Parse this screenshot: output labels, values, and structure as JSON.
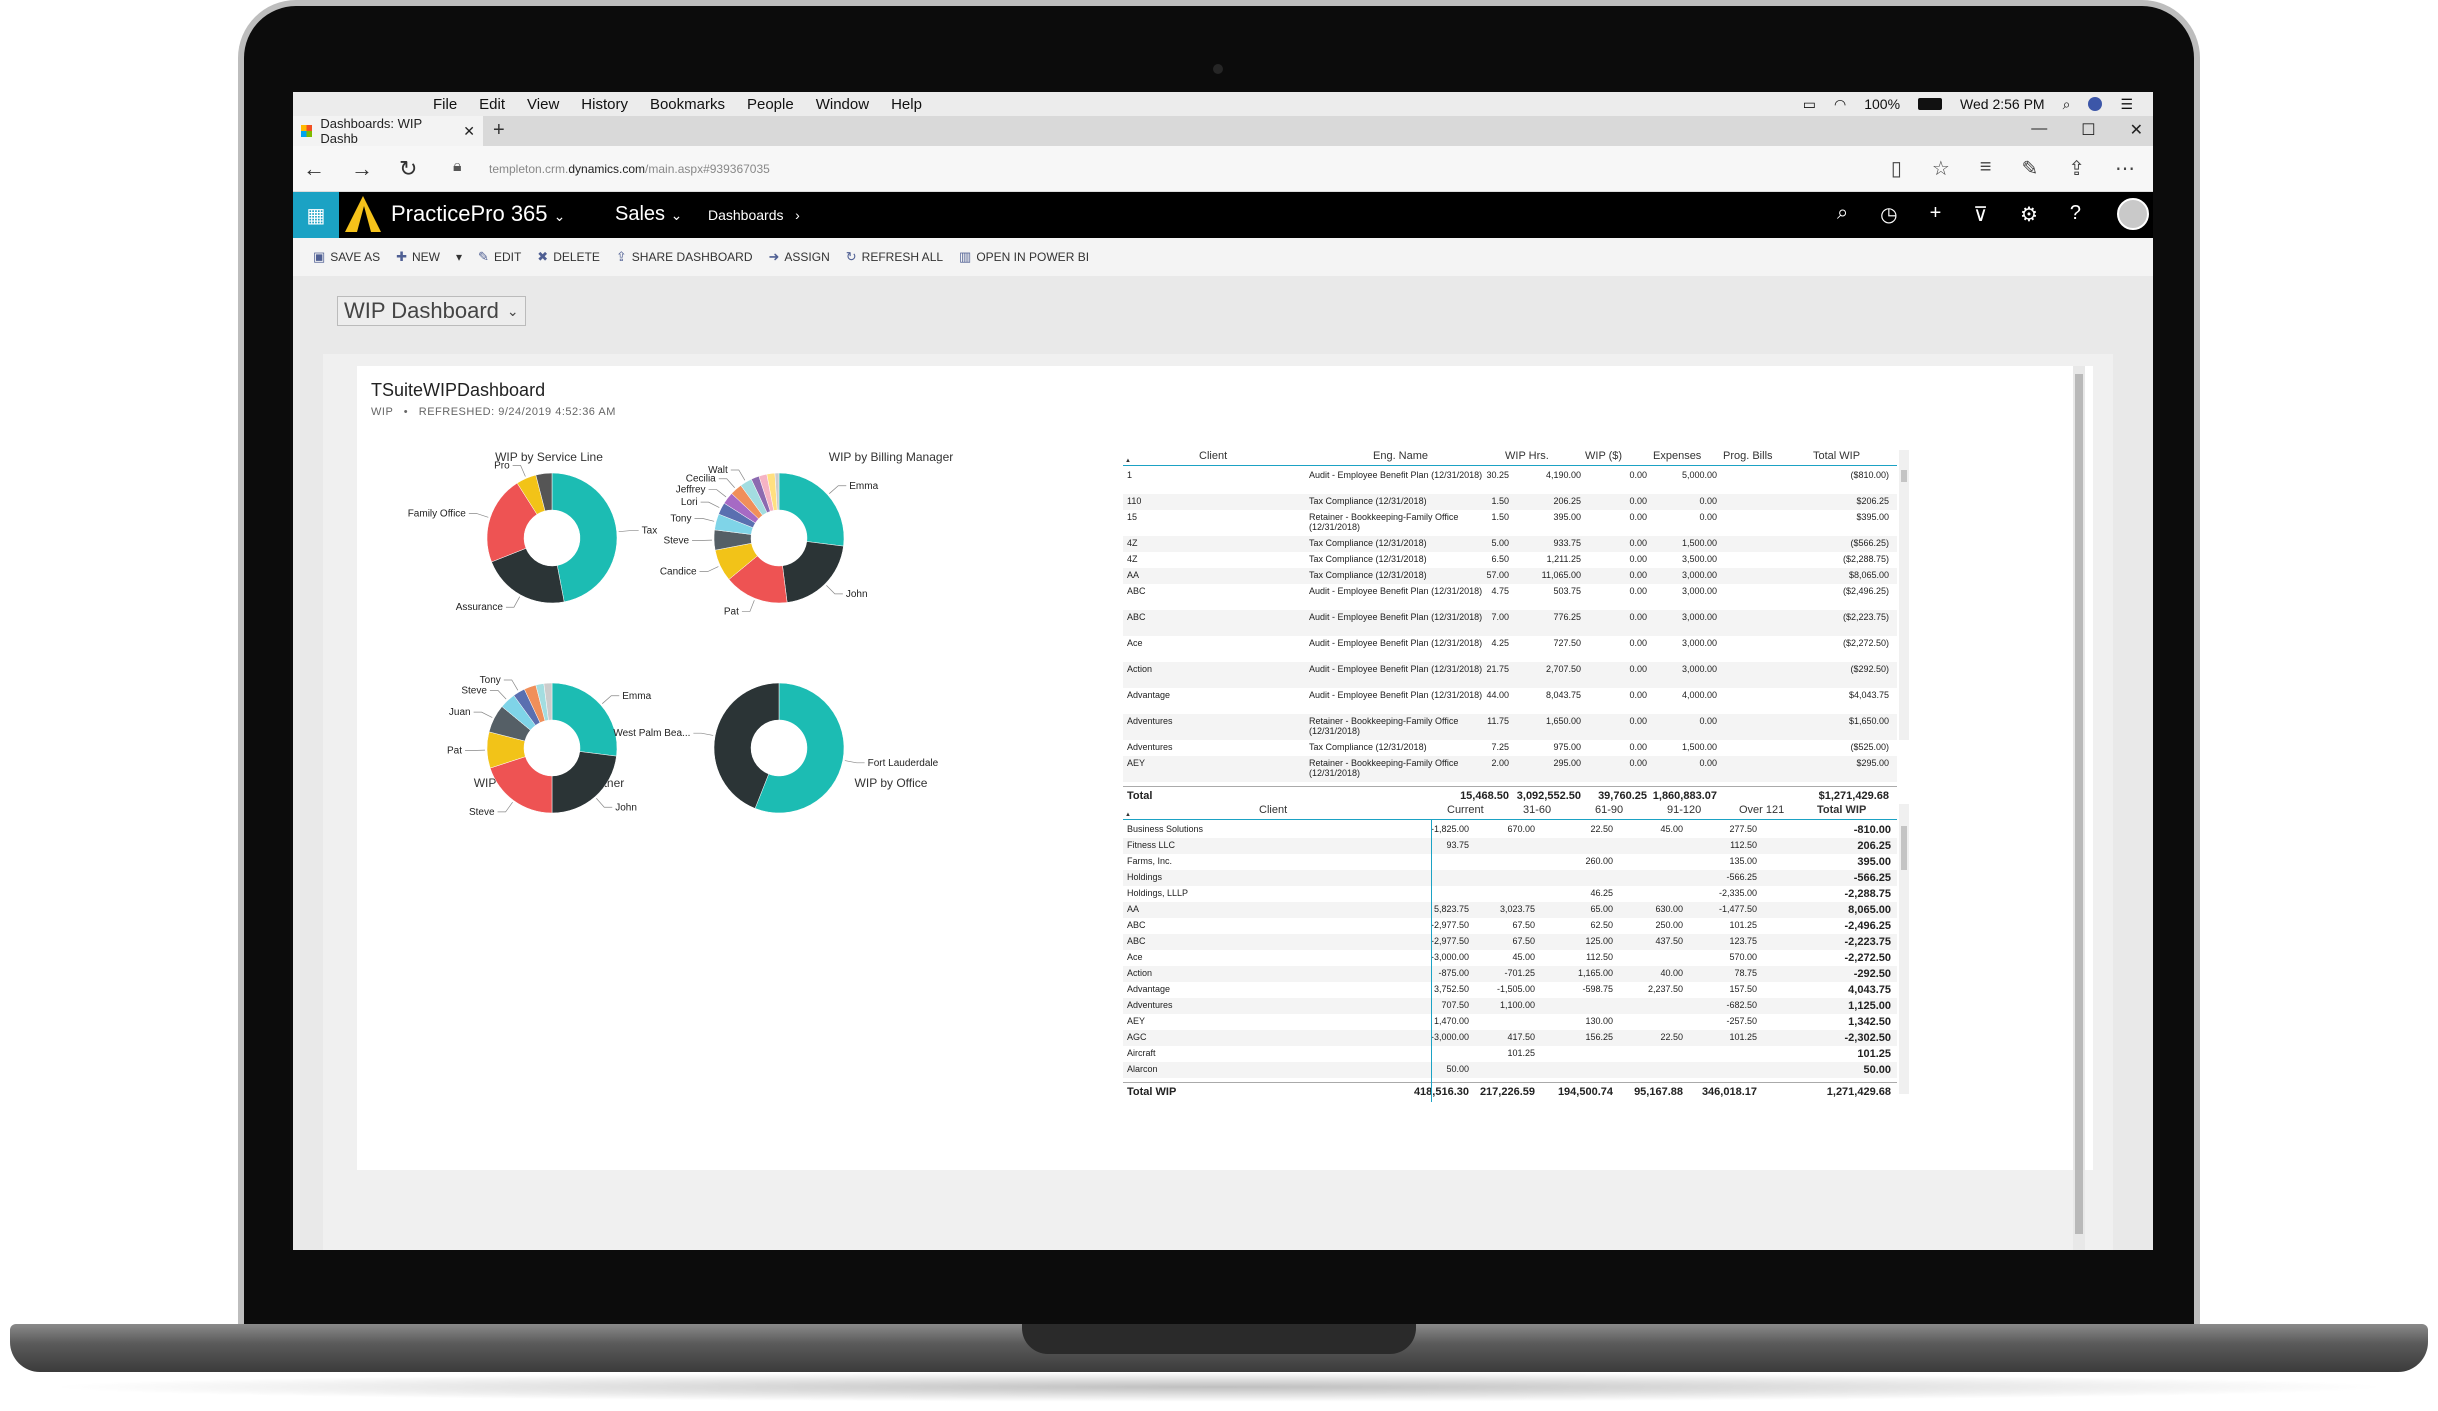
{
  "menubar": {
    "menus": [
      "File",
      "Edit",
      "View",
      "History",
      "Bookmarks",
      "People",
      "Window",
      "Help"
    ],
    "battery": "100%",
    "clock": "Wed 2:56 PM"
  },
  "browser": {
    "tab_title": "Dashboards: WIP Dashb",
    "url_prefix": "templeton.crm.",
    "url_domain": "dynamics.com",
    "url_path": "/main.aspx#939367035"
  },
  "app": {
    "brand": "PracticePro 365",
    "module": "Sales",
    "breadcrumb": "Dashboards"
  },
  "commands": [
    {
      "icon": "save-icon",
      "label": "SAVE AS"
    },
    {
      "icon": "new-icon",
      "label": "NEW"
    },
    {
      "icon": "edit-icon",
      "label": "EDIT"
    },
    {
      "icon": "delete-icon",
      "label": "DELETE"
    },
    {
      "icon": "share-icon",
      "label": "SHARE DASHBOARD"
    },
    {
      "icon": "assign-icon",
      "label": "ASSIGN"
    },
    {
      "icon": "refresh-icon",
      "label": "REFRESH ALL"
    },
    {
      "icon": "powerbi-icon",
      "label": "OPEN IN POWER BI"
    }
  ],
  "dashboard_selector": "WIP Dashboard",
  "report": {
    "title": "TSuiteWIPDashboard",
    "subtitle_left": "WIP",
    "subtitle_right": "REFRESHED: 9/24/2019 4:52:36 AM"
  },
  "colors": {
    "teal": "#1cbcb3",
    "dark": "#2b3436",
    "red": "#ee5353",
    "yellow": "#f2c318",
    "accent": "#1ba2c4"
  },
  "chart_data": [
    {
      "type": "pie",
      "title": "WIP by Service Line",
      "labels": [
        "Tax",
        "Assurance",
        "Family Office",
        "Pro",
        ""
      ],
      "values": [
        47,
        22,
        22,
        5,
        4
      ],
      "colors": [
        "#1cbcb3",
        "#2b3436",
        "#ee5353",
        "#f2c318",
        "#555555"
      ]
    },
    {
      "type": "pie",
      "title": "WIP by Billing Manager",
      "labels": [
        "Emma",
        "John",
        "Pat",
        "Candice",
        "Steve",
        "Tony",
        "Lori",
        "Jeffrey",
        "Cecilia",
        "Walt",
        "",
        "",
        "",
        ""
      ],
      "values": [
        27,
        21,
        16,
        8,
        5,
        4,
        3,
        3,
        3,
        3,
        2,
        2,
        2,
        1
      ],
      "colors": [
        "#1cbcb3",
        "#2b3436",
        "#ee5353",
        "#f2c318",
        "#555f66",
        "#7fd4e8",
        "#5a6fb0",
        "#a66ac4",
        "#f08f5a",
        "#a3dde0",
        "#8c6ab0",
        "#f5b3c4",
        "#ffe080",
        "#cccccc"
      ]
    },
    {
      "type": "pie",
      "title": "WIP by Responsible Partner",
      "labels": [
        "Emma",
        "John",
        "Steve",
        "Pat",
        "Juan",
        "Steve",
        "Tony",
        "",
        "",
        ""
      ],
      "values": [
        27,
        23,
        20,
        9,
        7,
        4,
        3,
        3,
        2,
        2
      ],
      "colors": [
        "#1cbcb3",
        "#2b3436",
        "#ee5353",
        "#f2c318",
        "#555f66",
        "#7fd4e8",
        "#5a6fb0",
        "#f08f5a",
        "#a3dde0",
        "#cccccc"
      ]
    },
    {
      "type": "pie",
      "title": "WIP by Office",
      "labels": [
        "Fort Lauderdale",
        "West Palm Bea..."
      ],
      "values": [
        56,
        44
      ],
      "colors": [
        "#1cbcb3",
        "#2b3436"
      ]
    }
  ],
  "table1": {
    "headers": [
      "Client",
      "Eng. Name",
      "WIP Hrs.",
      "WIP ($)",
      "Expenses",
      "Prog. Bills",
      "Total WIP"
    ],
    "rows": [
      [
        "1",
        "Audit - Employee Benefit Plan (12/31/2018)",
        "30.25",
        "4,190.00",
        "0.00",
        "5,000.00",
        "($810.00)"
      ],
      [
        "110",
        "Tax Compliance (12/31/2018)",
        "1.50",
        "206.25",
        "0.00",
        "0.00",
        "$206.25"
      ],
      [
        "15",
        "Retainer - Bookkeeping-Family Office (12/31/2018)",
        "1.50",
        "395.00",
        "0.00",
        "0.00",
        "$395.00"
      ],
      [
        "4Z",
        "Tax Compliance (12/31/2018)",
        "5.00",
        "933.75",
        "0.00",
        "1,500.00",
        "($566.25)"
      ],
      [
        "4Z",
        "Tax Compliance (12/31/2018)",
        "6.50",
        "1,211.25",
        "0.00",
        "3,500.00",
        "($2,288.75)"
      ],
      [
        "AA",
        "Tax Compliance (12/31/2018)",
        "57.00",
        "11,065.00",
        "0.00",
        "3,000.00",
        "$8,065.00"
      ],
      [
        "ABC",
        "Audit - Employee Benefit Plan (12/31/2018)",
        "4.75",
        "503.75",
        "0.00",
        "3,000.00",
        "($2,496.25)"
      ],
      [
        "ABC",
        "Audit - Employee Benefit Plan (12/31/2018)",
        "7.00",
        "776.25",
        "0.00",
        "3,000.00",
        "($2,223.75)"
      ],
      [
        "Ace",
        "Audit - Employee Benefit Plan (12/31/2018)",
        "4.25",
        "727.50",
        "0.00",
        "3,000.00",
        "($2,272.50)"
      ],
      [
        "Action",
        "Audit - Employee Benefit Plan (12/31/2018)",
        "21.75",
        "2,707.50",
        "0.00",
        "3,000.00",
        "($292.50)"
      ],
      [
        "Advantage",
        "Audit - Employee Benefit Plan (12/31/2018)",
        "44.00",
        "8,043.75",
        "0.00",
        "4,000.00",
        "$4,043.75"
      ],
      [
        "Adventures",
        "Retainer - Bookkeeping-Family Office (12/31/2018)",
        "11.75",
        "1,650.00",
        "0.00",
        "0.00",
        "$1,650.00"
      ],
      [
        "Adventures",
        "Tax Compliance (12/31/2018)",
        "7.25",
        "975.00",
        "0.00",
        "1,500.00",
        "($525.00)"
      ],
      [
        "AEY",
        "Retainer - Bookkeeping-Family Office (12/31/2018)",
        "2.00",
        "295.00",
        "0.00",
        "0.00",
        "$295.00"
      ]
    ],
    "total": [
      "Total",
      "",
      "15,468.50",
      "3,092,552.50",
      "39,760.25",
      "1,860,883.07",
      "$1,271,429.68"
    ]
  },
  "table2": {
    "headers": [
      "Client",
      "Current",
      "31-60",
      "61-90",
      "91-120",
      "Over 121",
      "Total WIP"
    ],
    "rows": [
      [
        "Business Solutions",
        "-1,825.00",
        "670.00",
        "22.50",
        "45.00",
        "277.50",
        "-810.00"
      ],
      [
        "Fitness LLC",
        "93.75",
        "",
        "",
        "",
        "112.50",
        "206.25"
      ],
      [
        "Farms, Inc.",
        "",
        "",
        "260.00",
        "",
        "135.00",
        "395.00"
      ],
      [
        "Holdings",
        "",
        "",
        "",
        "",
        "-566.25",
        "-566.25"
      ],
      [
        "Holdings, LLLP",
        "",
        "",
        "46.25",
        "",
        "-2,335.00",
        "-2,288.75"
      ],
      [
        "AA",
        "5,823.75",
        "3,023.75",
        "65.00",
        "630.00",
        "-1,477.50",
        "8,065.00"
      ],
      [
        "ABC",
        "-2,977.50",
        "67.50",
        "62.50",
        "250.00",
        "101.25",
        "-2,496.25"
      ],
      [
        "ABC",
        "-2,977.50",
        "67.50",
        "125.00",
        "437.50",
        "123.75",
        "-2,223.75"
      ],
      [
        "Ace",
        "-3,000.00",
        "45.00",
        "112.50",
        "",
        "570.00",
        "-2,272.50"
      ],
      [
        "Action",
        "-875.00",
        "-701.25",
        "1,165.00",
        "40.00",
        "78.75",
        "-292.50"
      ],
      [
        "Advantage",
        "3,752.50",
        "-1,505.00",
        "-598.75",
        "2,237.50",
        "157.50",
        "4,043.75"
      ],
      [
        "Adventures",
        "707.50",
        "1,100.00",
        "",
        "",
        "-682.50",
        "1,125.00"
      ],
      [
        "AEY",
        "1,470.00",
        "",
        "130.00",
        "",
        "-257.50",
        "1,342.50"
      ],
      [
        "AGC",
        "-3,000.00",
        "417.50",
        "156.25",
        "22.50",
        "101.25",
        "-2,302.50"
      ],
      [
        "Aircraft",
        "",
        "101.25",
        "",
        "",
        "",
        "101.25"
      ],
      [
        "Alarcon",
        "50.00",
        "",
        "",
        "",
        "",
        "50.00"
      ]
    ],
    "total": [
      "Total WIP",
      "418,516.30",
      "217,226.59",
      "194,500.74",
      "95,167.88",
      "346,018.17",
      "1,271,429.68"
    ]
  }
}
